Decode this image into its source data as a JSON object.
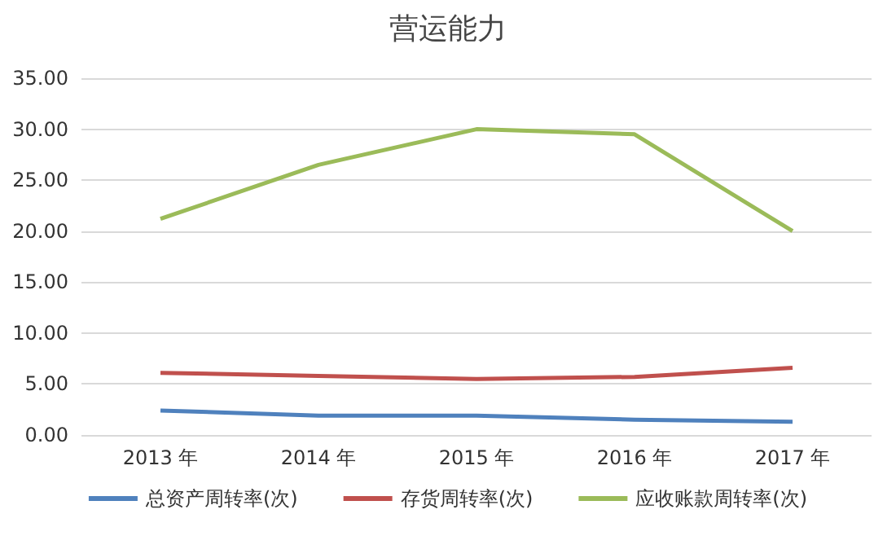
{
  "chart_data": {
    "type": "line",
    "title": "营运能力",
    "categories": [
      "2013 年",
      "2014 年",
      "2015 年",
      "2016 年",
      "2017 年"
    ],
    "series": [
      {
        "name": "总资产周转率(次)",
        "color": "#4f81bd",
        "values": [
          2.4,
          1.9,
          1.9,
          1.5,
          1.3
        ]
      },
      {
        "name": "存货周转率(次)",
        "color": "#c0504d",
        "values": [
          6.1,
          5.8,
          5.5,
          5.7,
          6.6
        ]
      },
      {
        "name": "应收账款周转率(次)",
        "color": "#9bbb59",
        "values": [
          21.2,
          26.5,
          30.0,
          29.5,
          20.0
        ]
      }
    ],
    "ylim": [
      0,
      35
    ],
    "yticks": [
      {
        "value": 0,
        "label": "0.00"
      },
      {
        "value": 5,
        "label": "5.00"
      },
      {
        "value": 10,
        "label": "10.00"
      },
      {
        "value": 15,
        "label": "15.00"
      },
      {
        "value": 20,
        "label": "20.00"
      },
      {
        "value": 25,
        "label": "25.00"
      },
      {
        "value": 30,
        "label": "30.00"
      },
      {
        "value": 35,
        "label": "35.00"
      }
    ],
    "grid": "y",
    "legend": "bottom",
    "marker": "none",
    "line_style": "solid"
  }
}
